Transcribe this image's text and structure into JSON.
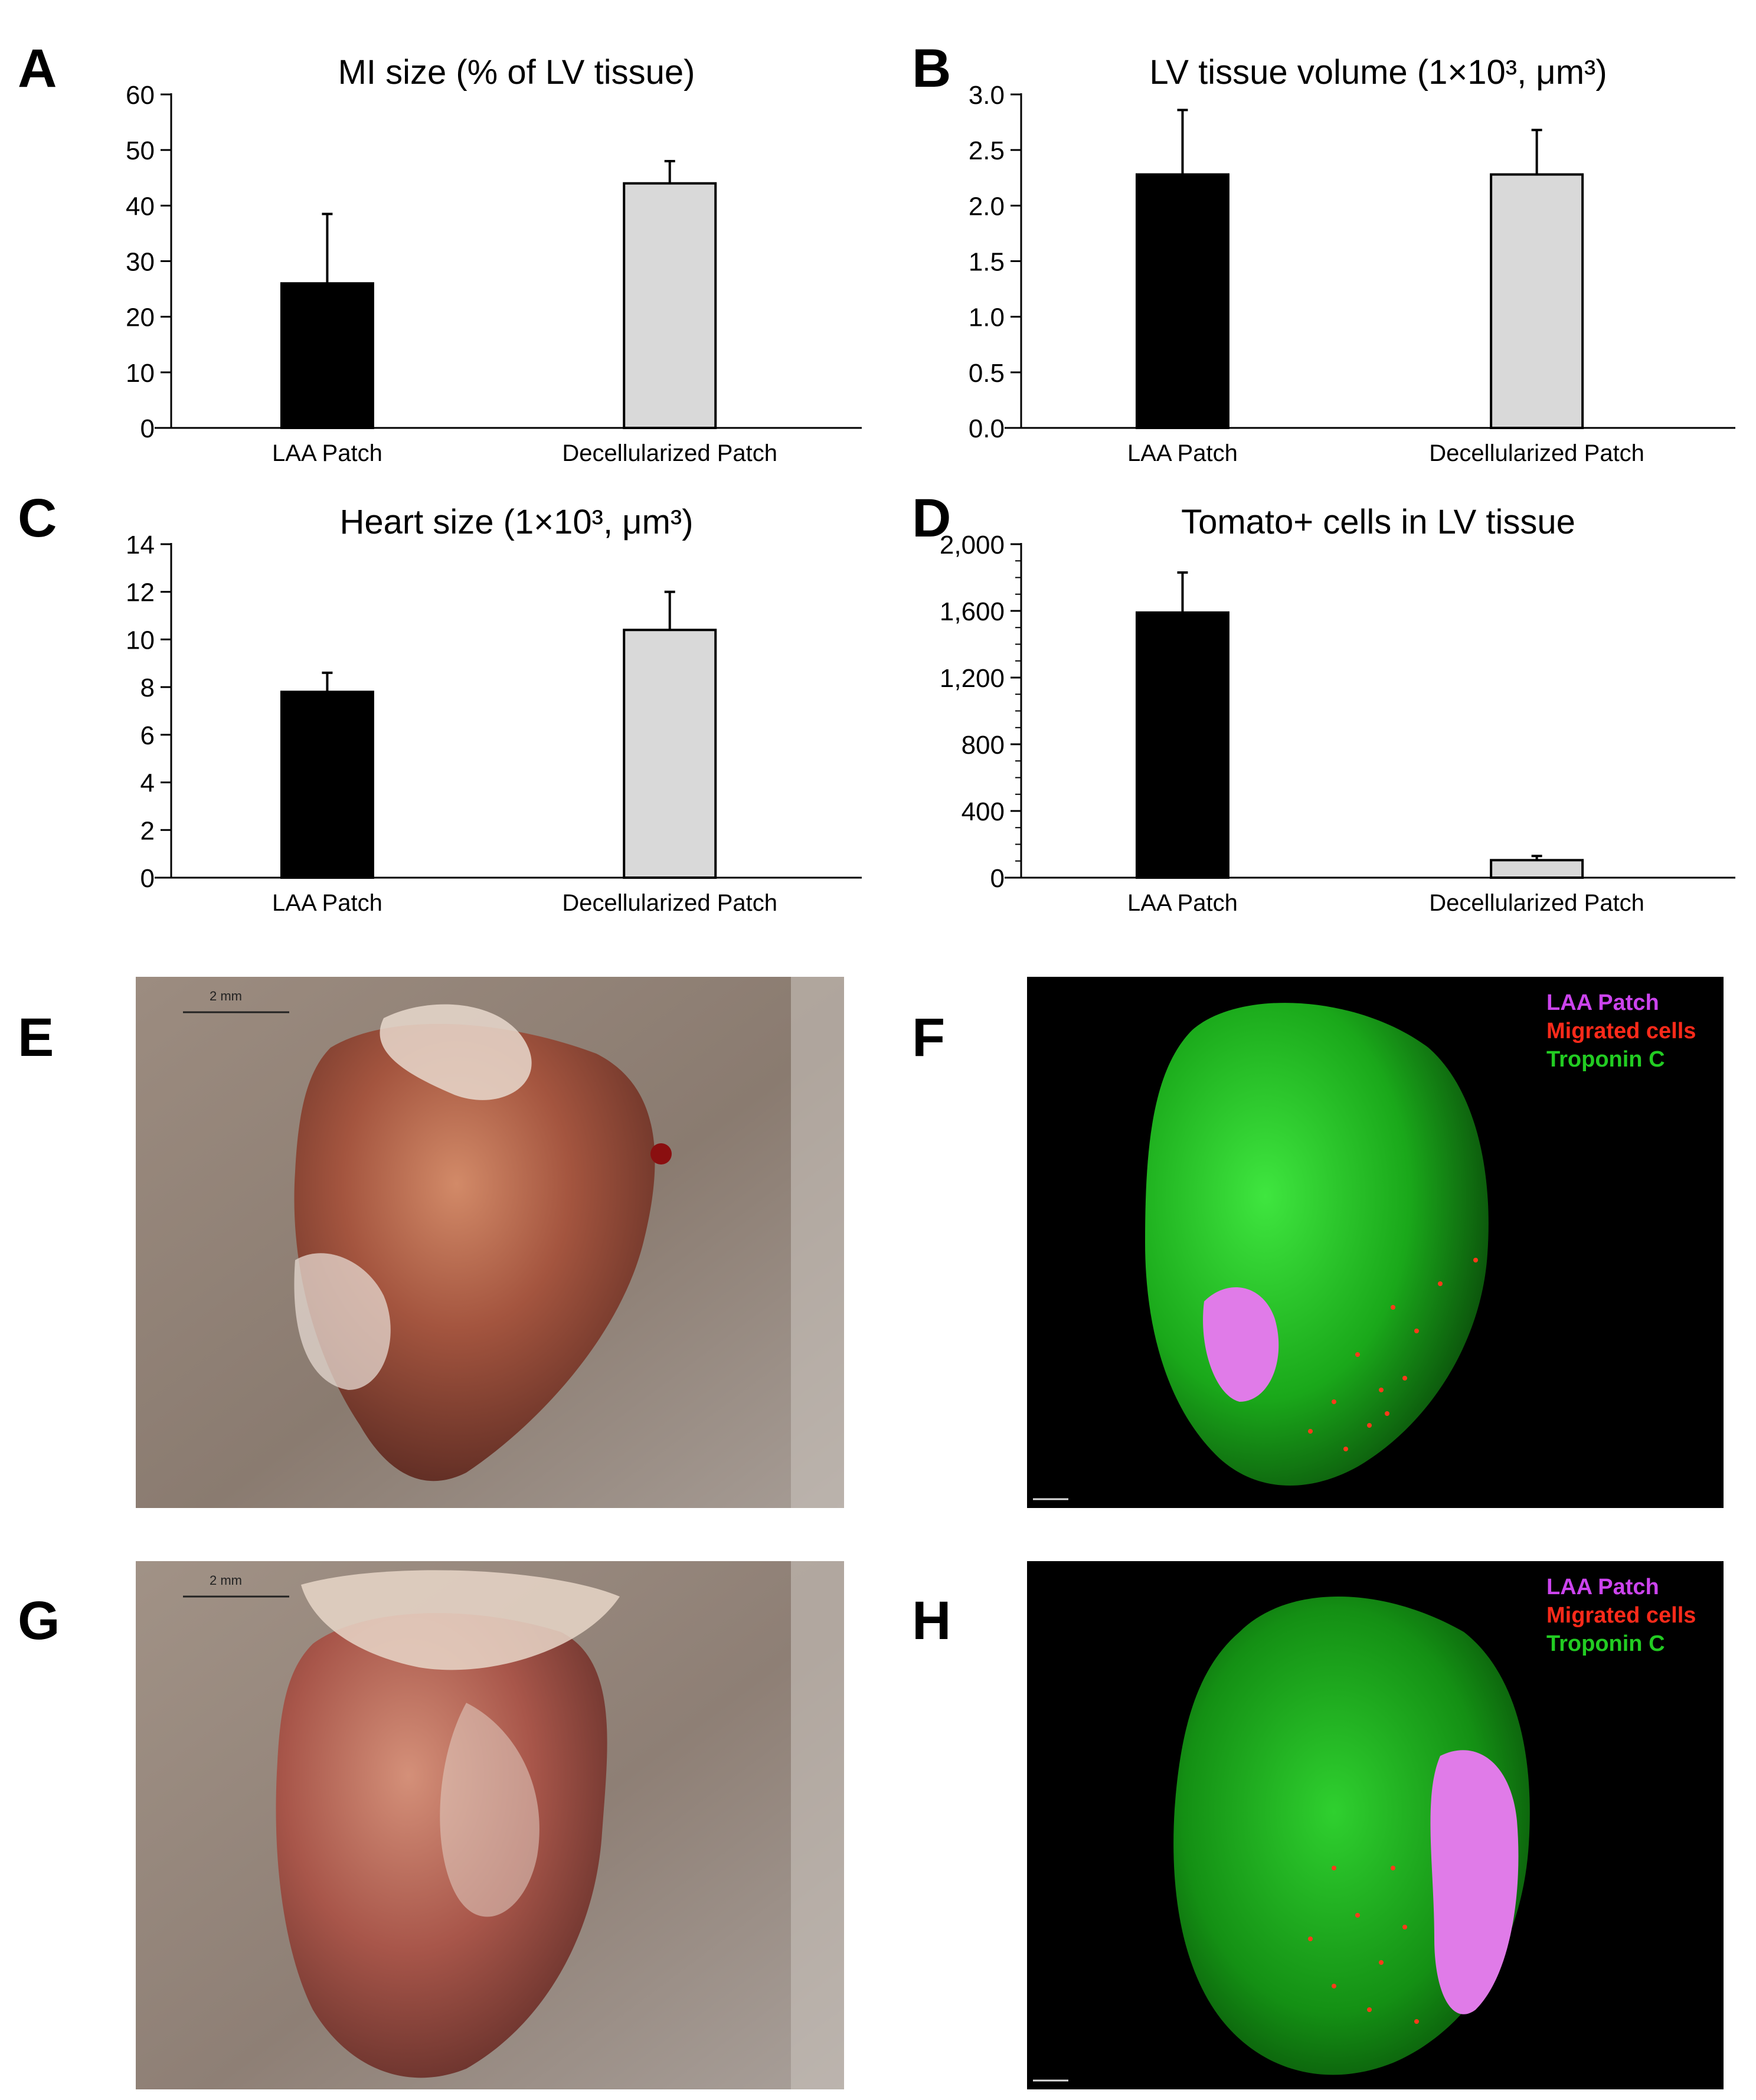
{
  "panel_labels": [
    "A",
    "B",
    "C",
    "D",
    "E",
    "F",
    "G",
    "H"
  ],
  "colors": {
    "laa_bar": "#000000",
    "decell_bar": "#d9d9d9",
    "laa_patch_legend": "#cc44ee",
    "migrated_legend": "#ff2a1a",
    "troponin_legend": "#22cc22"
  },
  "chart_data": [
    {
      "type": "bar",
      "panel": "A",
      "title": "MI size (% of LV tissue)",
      "categories": [
        "LAA Patch",
        "Decellularized Patch"
      ],
      "values": [
        26,
        44
      ],
      "errors": [
        12.5,
        4
      ],
      "ylim": [
        0,
        60
      ],
      "ticks": [
        0,
        10,
        20,
        30,
        40,
        50,
        60
      ],
      "tick_labels": [
        "0",
        "10",
        "20",
        "30",
        "40",
        "50",
        "60"
      ],
      "minor_ticks": false
    },
    {
      "type": "bar",
      "panel": "B",
      "title": "LV tissue volume (1×10³, μm³)",
      "categories": [
        "LAA Patch",
        "Decellularized Patch"
      ],
      "values": [
        2.28,
        2.28
      ],
      "errors": [
        0.58,
        0.4
      ],
      "ylim": [
        0,
        3
      ],
      "ticks": [
        0,
        0.5,
        1.0,
        1.5,
        2.0,
        2.5,
        3.0
      ],
      "tick_labels": [
        "0.0",
        "0.5",
        "1.0",
        "1.5",
        "2.0",
        "2.5",
        "3.0"
      ],
      "minor_ticks": false
    },
    {
      "type": "bar",
      "panel": "C",
      "title": "Heart size (1×10³, μm³)",
      "categories": [
        "LAA Patch",
        "Decellularized Patch"
      ],
      "values": [
        7.8,
        10.4
      ],
      "errors": [
        0.8,
        1.6
      ],
      "ylim": [
        0,
        14
      ],
      "ticks": [
        0,
        2,
        4,
        6,
        8,
        10,
        12,
        14
      ],
      "tick_labels": [
        "0",
        "2",
        "4",
        "6",
        "8",
        "10",
        "12",
        "14"
      ],
      "minor_ticks": false
    },
    {
      "type": "bar",
      "panel": "D",
      "title": "Tomato+ cells in LV tissue",
      "categories": [
        "LAA Patch",
        "Decellularized Patch"
      ],
      "values": [
        1590,
        105
      ],
      "errors": [
        240,
        25
      ],
      "ylim": [
        0,
        2000
      ],
      "ticks": [
        0,
        400,
        800,
        1200,
        1600,
        2000
      ],
      "tick_labels": [
        "0",
        "400",
        "800",
        "1,200",
        "1,600",
        "2,000"
      ],
      "minor_ticks": true
    }
  ],
  "photos": {
    "e_scale": "2 mm",
    "g_scale": "2 mm"
  },
  "fluor_legend": {
    "laa_patch": "LAA Patch",
    "migrated": "Migrated cells",
    "troponin": "Troponin C"
  }
}
